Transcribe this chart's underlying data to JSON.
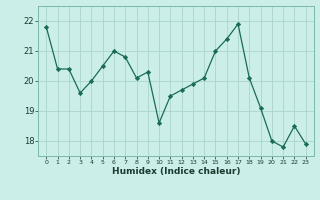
{
  "x": [
    0,
    1,
    2,
    3,
    4,
    5,
    6,
    7,
    8,
    9,
    10,
    11,
    12,
    13,
    14,
    15,
    16,
    17,
    18,
    19,
    20,
    21,
    22,
    23
  ],
  "y": [
    21.8,
    20.4,
    20.4,
    19.6,
    20.0,
    20.5,
    21.0,
    20.8,
    20.1,
    20.3,
    18.6,
    19.5,
    19.7,
    19.9,
    20.1,
    21.0,
    21.4,
    21.9,
    20.1,
    19.1,
    18.0,
    17.8,
    18.5,
    17.9
  ],
  "line_color": "#1a6b5a",
  "marker": "D",
  "marker_size": 2.2,
  "background_color": "#cceee8",
  "grid_color": "#aad4cc",
  "xlabel": "Humidex (Indice chaleur)",
  "ylim": [
    17.5,
    22.5
  ],
  "yticks": [
    18,
    19,
    20,
    21,
    22
  ],
  "xticks": [
    0,
    1,
    2,
    3,
    4,
    5,
    6,
    7,
    8,
    9,
    10,
    11,
    12,
    13,
    14,
    15,
    16,
    17,
    18,
    19,
    20,
    21,
    22,
    23
  ]
}
